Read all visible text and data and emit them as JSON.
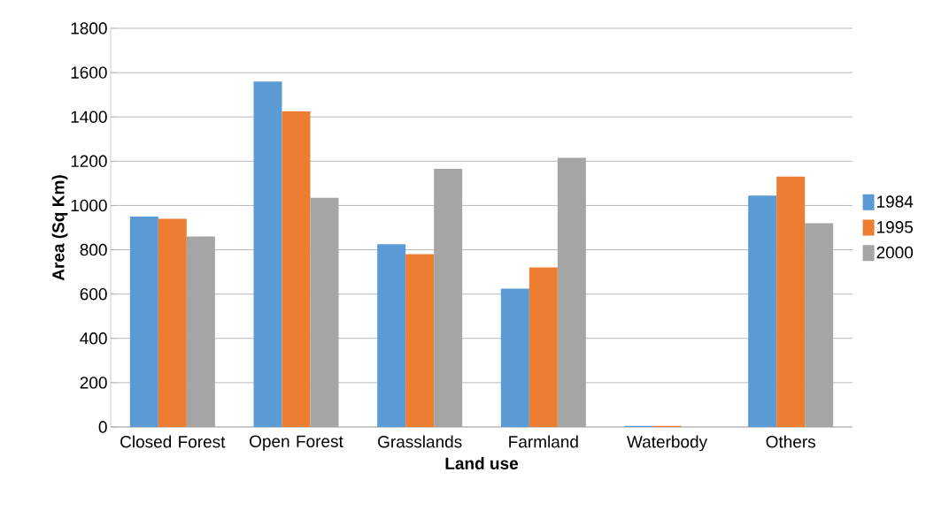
{
  "chart_data": {
    "type": "bar",
    "xlabel": "Land use",
    "ylabel": "Area (Sq Km)",
    "categories": [
      "Closed Forest",
      "Open Forest",
      "Grasslands",
      "Farmland",
      "Waterbody",
      "Others"
    ],
    "series": [
      {
        "name": "1984",
        "color": "#5b9bd5",
        "values": [
          950,
          1560,
          825,
          625,
          5,
          1045
        ]
      },
      {
        "name": "1995",
        "color": "#ed7d31",
        "values": [
          940,
          1425,
          780,
          720,
          5,
          1130
        ]
      },
      {
        "name": "2000",
        "color": "#a5a5a5",
        "values": [
          860,
          1035,
          1165,
          1215,
          null,
          920
        ]
      }
    ],
    "ylim": [
      0,
      1800
    ],
    "yticks": [
      0,
      200,
      400,
      600,
      800,
      1000,
      1200,
      1400,
      1600,
      1800
    ],
    "grid": "y",
    "legend": "right"
  }
}
